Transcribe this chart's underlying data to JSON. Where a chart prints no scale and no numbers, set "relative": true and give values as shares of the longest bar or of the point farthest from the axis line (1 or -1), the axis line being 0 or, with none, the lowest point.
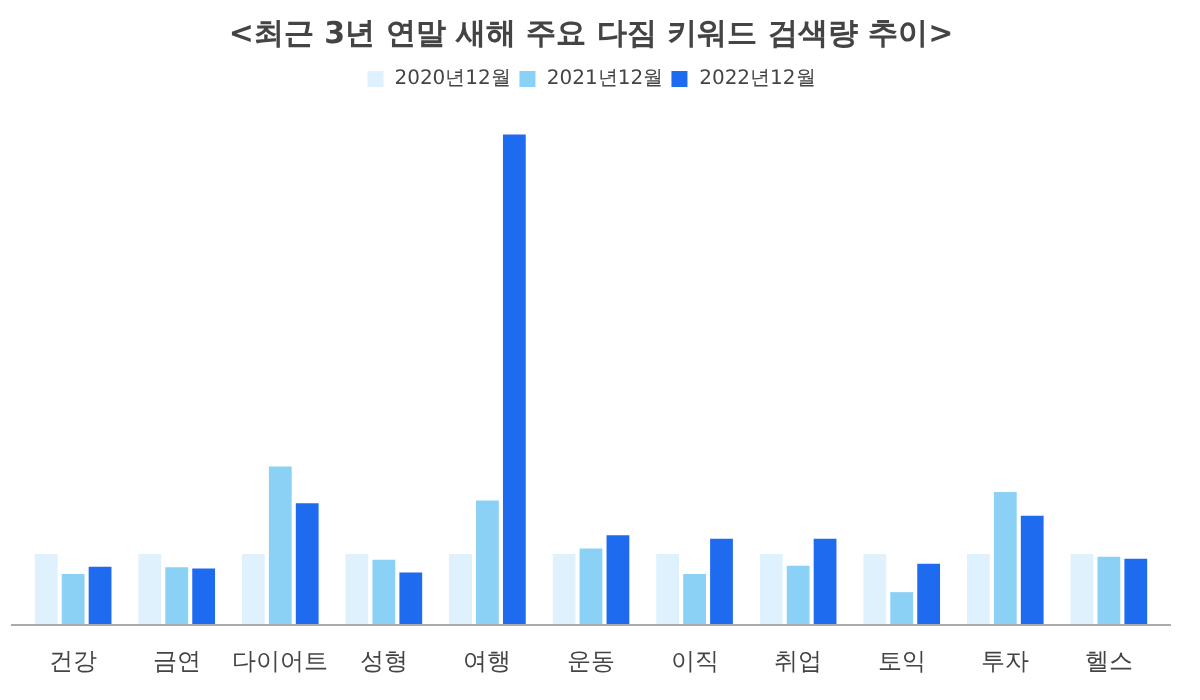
{
  "chart_data": {
    "type": "bar",
    "title": "<최근 3년 연말 새해 주요 다짐 키워드 검색량 추이>",
    "relative": true,
    "legend": "top",
    "grid": false,
    "categories": [
      "건강",
      "금연",
      "다이어트",
      "성형",
      "여행",
      "운동",
      "이직",
      "취업",
      "토익",
      "투자",
      "헬스"
    ],
    "series": [
      {
        "name": "2020년12월",
        "color": "#dff1fc",
        "values": [
          0.145,
          0.145,
          0.145,
          0.145,
          0.145,
          0.145,
          0.145,
          0.145,
          0.145,
          0.145,
          0.145
        ]
      },
      {
        "name": "2021년12월",
        "color": "#8bd0f5",
        "values": [
          0.104,
          0.118,
          0.323,
          0.133,
          0.254,
          0.156,
          0.104,
          0.121,
          0.067,
          0.271,
          0.139
        ]
      },
      {
        "name": "2022년12월",
        "color": "#1f6bef",
        "values": [
          0.119,
          0.115,
          0.248,
          0.107,
          1,
          0.183,
          0.176,
          0.176,
          0.125,
          0.223,
          0.135
        ]
      }
    ]
  }
}
